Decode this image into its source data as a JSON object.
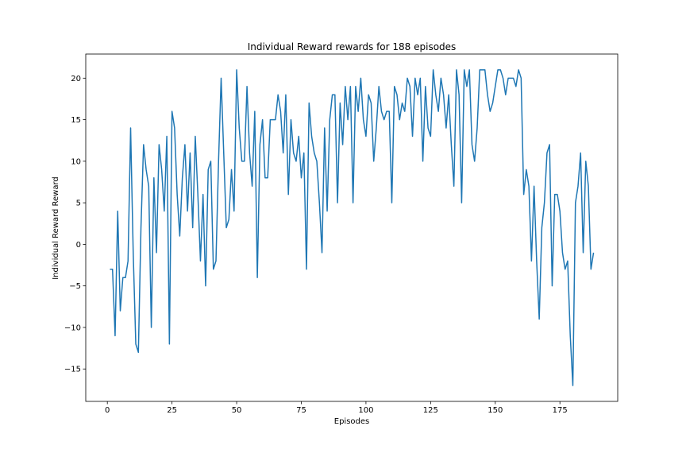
{
  "chart_data": {
    "type": "line",
    "title": "Individual Reward rewards for 188 episodes",
    "x_label": "Episodes",
    "y_label": "Individual Reward Reward",
    "x": [
      1,
      2,
      3,
      4,
      5,
      6,
      7,
      8,
      9,
      10,
      11,
      12,
      13,
      14,
      15,
      16,
      17,
      18,
      19,
      20,
      21,
      22,
      23,
      24,
      25,
      26,
      27,
      28,
      29,
      30,
      31,
      32,
      33,
      34,
      35,
      36,
      37,
      38,
      39,
      40,
      41,
      42,
      43,
      44,
      45,
      46,
      47,
      48,
      49,
      50,
      51,
      52,
      53,
      54,
      55,
      56,
      57,
      58,
      59,
      60,
      61,
      62,
      63,
      64,
      65,
      66,
      67,
      68,
      69,
      70,
      71,
      72,
      73,
      74,
      75,
      76,
      77,
      78,
      79,
      80,
      81,
      82,
      83,
      84,
      85,
      86,
      87,
      88,
      89,
      90,
      91,
      92,
      93,
      94,
      95,
      96,
      97,
      98,
      99,
      100,
      101,
      102,
      103,
      104,
      105,
      106,
      107,
      108,
      109,
      110,
      111,
      112,
      113,
      114,
      115,
      116,
      117,
      118,
      119,
      120,
      121,
      122,
      123,
      124,
      125,
      126,
      127,
      128,
      129,
      130,
      131,
      132,
      133,
      134,
      135,
      136,
      137,
      138,
      139,
      140,
      141,
      142,
      143,
      144,
      145,
      146,
      147,
      148,
      149,
      150,
      151,
      152,
      153,
      154,
      155,
      156,
      157,
      158,
      159,
      160,
      161,
      162,
      163,
      164,
      165,
      166,
      167,
      168,
      169,
      170,
      171,
      172,
      173,
      174,
      175,
      176,
      177,
      178,
      179,
      180,
      181,
      182,
      183,
      184,
      185,
      186,
      187,
      188
    ],
    "series": [
      {
        "name": "Individual Reward",
        "color": "#1f77b4",
        "values": [
          -3,
          -3,
          -11,
          4,
          -8,
          -4,
          -4,
          -2,
          14,
          -1,
          -12,
          -13,
          2,
          12,
          9,
          7,
          -10,
          8,
          -1,
          12,
          9,
          4,
          13,
          -12,
          16,
          14,
          6,
          1,
          8,
          12,
          4,
          11,
          2,
          13,
          6,
          -2,
          6,
          -5,
          9,
          10,
          -3,
          -2,
          10,
          20,
          11,
          2,
          3,
          9,
          4,
          21,
          14,
          10,
          10,
          19,
          11,
          7,
          16,
          -4,
          12,
          15,
          8,
          8,
          15,
          15,
          15,
          18,
          16,
          11,
          18,
          6,
          15,
          11,
          10,
          13,
          8,
          11,
          -3,
          17,
          13,
          11,
          10,
          5,
          -1,
          14,
          4,
          15,
          18,
          18,
          5,
          17,
          12,
          19,
          15,
          19,
          5,
          19,
          16,
          20,
          15,
          13,
          18,
          17,
          10,
          14,
          19,
          16,
          15,
          16,
          16,
          5,
          19,
          18,
          15,
          17,
          16,
          20,
          19,
          13,
          20,
          18,
          20,
          10,
          19,
          14,
          13,
          21,
          18,
          16,
          20,
          18,
          14,
          18,
          12,
          7,
          21,
          18,
          5,
          21,
          19,
          21,
          12,
          10,
          14,
          21,
          21,
          21,
          18,
          16,
          17,
          19,
          21,
          21,
          20,
          18,
          20,
          20,
          20,
          19,
          21,
          20,
          6,
          9,
          7,
          -2,
          7,
          -2,
          -9,
          2,
          5,
          11,
          12,
          -5,
          6,
          6,
          4,
          -1,
          -3,
          -2,
          -11,
          -17,
          5,
          7,
          11,
          -1,
          10,
          7,
          -3,
          -1
        ]
      }
    ],
    "xlim": [
      -8.35,
      197.35
    ],
    "ylim": [
      -18.9,
      22.9
    ],
    "xticks": [
      0,
      25,
      50,
      75,
      100,
      125,
      150,
      175
    ],
    "yticks": [
      {
        "value": -15,
        "label": "−15"
      },
      {
        "value": -10,
        "label": "−10"
      },
      {
        "value": -5,
        "label": "−5"
      },
      0,
      5,
      10,
      15,
      20
    ]
  }
}
